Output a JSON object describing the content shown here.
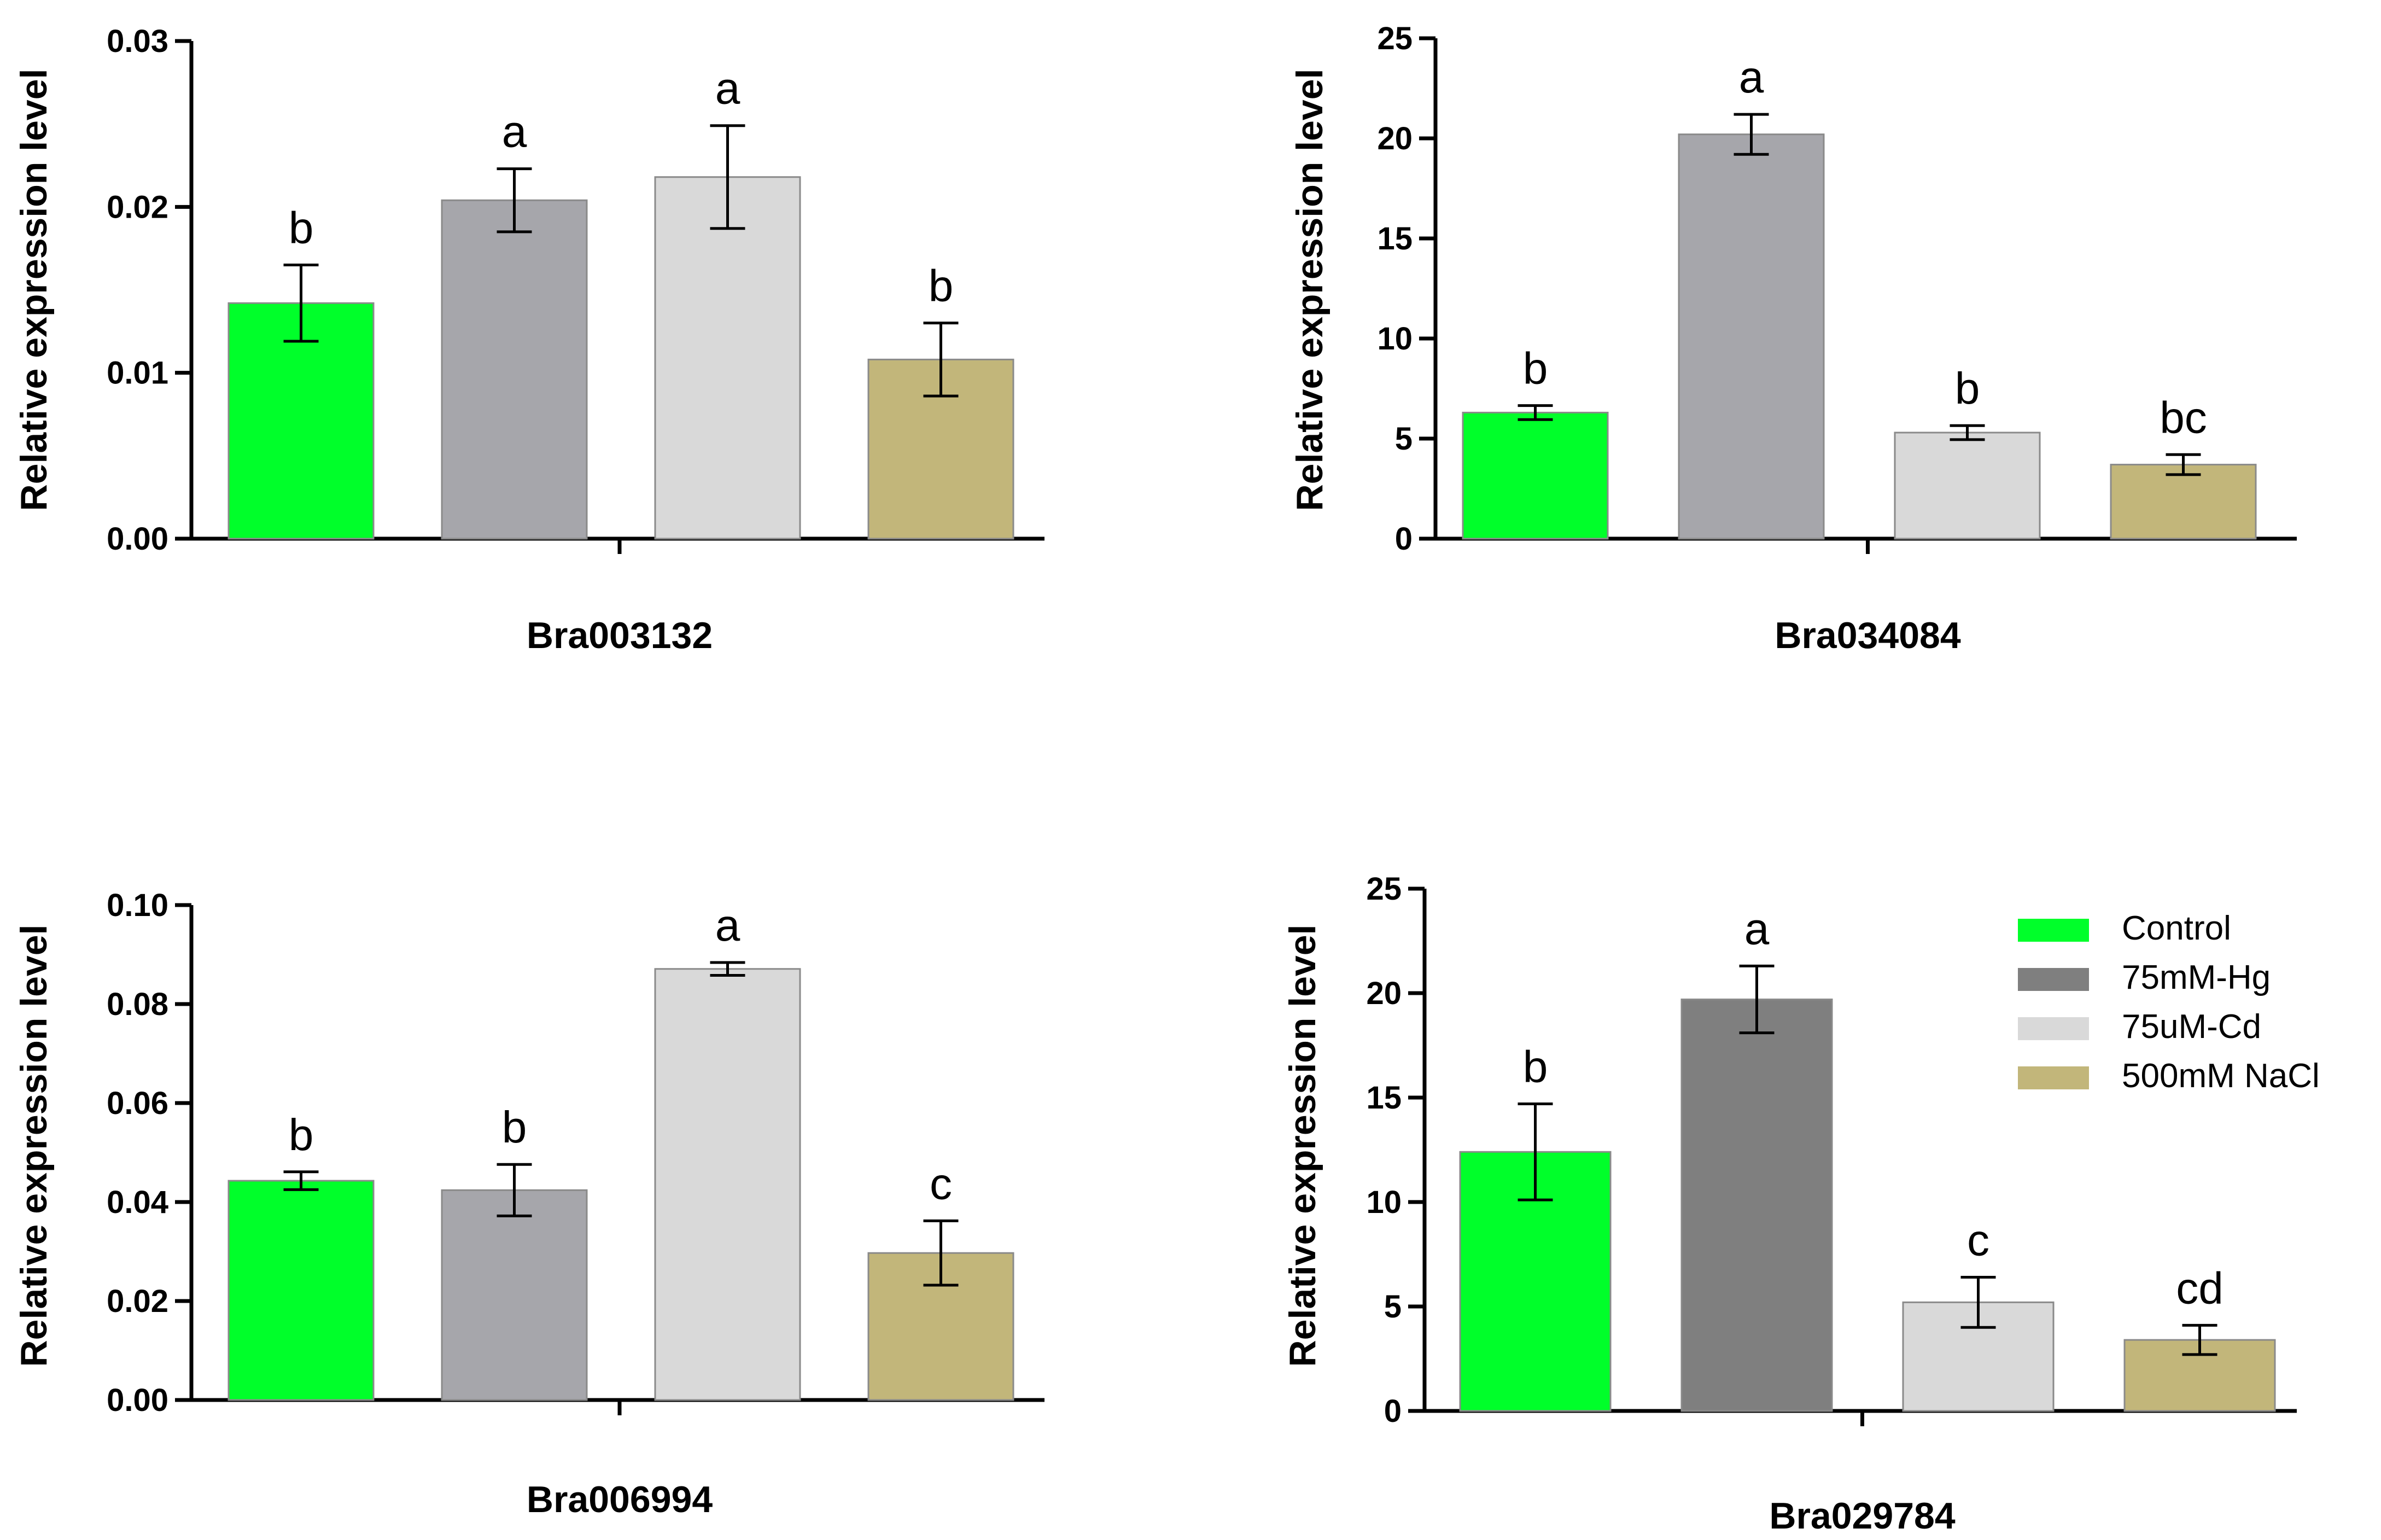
{
  "colors": {
    "Control": "#00ff2a",
    "75mM-Hg": "#a6a6ab",
    "75uM-Cd": "#d9d9d9",
    "500mM NaCl": "#c2b67a",
    "legend_75mM-Hg": "#7f7f7f",
    "axis": "#000000"
  },
  "legend": {
    "entries": [
      "Control",
      "75mM-Hg",
      "75uM-Cd",
      "500mM NaCl"
    ]
  },
  "chart_data": [
    {
      "type": "bar",
      "title": "",
      "xlabel": "Bra003132",
      "ylabel": "Relative expression level",
      "categories": [
        "Control",
        "75mM-Hg",
        "75uM-Cd",
        "500mM NaCl"
      ],
      "values": [
        0.0142,
        0.0204,
        0.0218,
        0.0108
      ],
      "errors": [
        0.0023,
        0.0019,
        0.0031,
        0.0022
      ],
      "significance": [
        "b",
        "a",
        "a",
        "b"
      ],
      "ylim": [
        0,
        0.03
      ],
      "yticks": [
        0,
        0.01,
        0.02,
        0.03
      ],
      "ytick_labels": [
        "0.00",
        "0.01",
        "0.02",
        "0.03"
      ]
    },
    {
      "type": "bar",
      "title": "",
      "xlabel": "Bra034084",
      "ylabel": "Relative expression level",
      "categories": [
        "Control",
        "75mM-Hg",
        "75uM-Cd",
        "500mM NaCl"
      ],
      "values": [
        6.3,
        20.2,
        5.3,
        3.7
      ],
      "errors": [
        0.35,
        1.0,
        0.35,
        0.5
      ],
      "significance": [
        "b",
        "a",
        "b",
        "bc"
      ],
      "ylim": [
        0,
        25
      ],
      "yticks": [
        0,
        5,
        10,
        15,
        20,
        25
      ],
      "ytick_labels": [
        "0",
        "5",
        "10",
        "15",
        "20",
        "25"
      ]
    },
    {
      "type": "bar",
      "title": "",
      "xlabel": "Bra006994",
      "ylabel": "Relative expression level",
      "categories": [
        "Control",
        "75mM-Hg",
        "75uM-Cd",
        "500mM NaCl"
      ],
      "values": [
        0.0443,
        0.0424,
        0.0871,
        0.0297
      ],
      "errors": [
        0.0018,
        0.0052,
        0.0013,
        0.0065
      ],
      "significance": [
        "b",
        "b",
        "a",
        "c"
      ],
      "ylim": [
        0,
        0.1
      ],
      "yticks": [
        0,
        0.02,
        0.04,
        0.06,
        0.08,
        0.1
      ],
      "ytick_labels": [
        "0.00",
        "0.02",
        "0.04",
        "0.06",
        "0.08",
        "0.10"
      ]
    },
    {
      "type": "bar",
      "title": "",
      "xlabel": "Bra029784",
      "ylabel": "Relative expression level",
      "categories": [
        "Control",
        "75mM-Hg",
        "75uM-Cd",
        "500mM NaCl"
      ],
      "values": [
        12.4,
        19.7,
        5.2,
        3.4
      ],
      "errors": [
        2.3,
        1.6,
        1.2,
        0.7
      ],
      "significance": [
        "b",
        "a",
        "c",
        "cd"
      ],
      "ylim": [
        0,
        25
      ],
      "yticks": [
        0,
        5,
        10,
        15,
        20,
        25
      ],
      "ytick_labels": [
        "0",
        "5",
        "10",
        "15",
        "20",
        "25"
      ]
    }
  ]
}
